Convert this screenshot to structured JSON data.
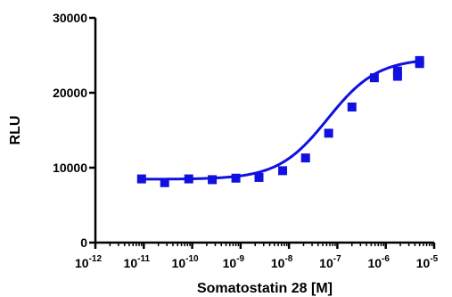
{
  "chart_data": {
    "type": "scatter",
    "xlabel": "Somatostatin 28 [M]",
    "ylabel": "RLU",
    "x_scale": "log10",
    "xlim": [
      1e-12,
      1e-05
    ],
    "ylim": [
      0,
      30000
    ],
    "x_ticks": [
      {
        "value": 1e-12,
        "base": "10",
        "exp": "-12"
      },
      {
        "value": 1e-11,
        "base": "10",
        "exp": "-11"
      },
      {
        "value": 1e-10,
        "base": "10",
        "exp": "-10"
      },
      {
        "value": 1e-09,
        "base": "10",
        "exp": "-9"
      },
      {
        "value": 1e-08,
        "base": "10",
        "exp": "-8"
      },
      {
        "value": 1e-07,
        "base": "10",
        "exp": "-7"
      },
      {
        "value": 1e-06,
        "base": "10",
        "exp": "-6"
      },
      {
        "value": 1e-05,
        "base": "10",
        "exp": "-5"
      }
    ],
    "y_ticks": [
      {
        "value": 0,
        "label": "0"
      },
      {
        "value": 10000,
        "label": "10000"
      },
      {
        "value": 20000,
        "label": "20000"
      },
      {
        "value": 30000,
        "label": "30000"
      }
    ],
    "series": [
      {
        "color": "#1010e0",
        "marker": "square",
        "x": [
          9e-12,
          2.7e-11,
          8.5e-11,
          2.6e-10,
          8e-10,
          2.4e-09,
          7.4e-09,
          2.2e-08,
          6.6e-08,
          2e-07,
          5.8e-07,
          1.75e-06,
          1.75e-06,
          5e-06,
          5e-06
        ],
        "y": [
          8500,
          8000,
          8500,
          8400,
          8600,
          8700,
          9600,
          11300,
          14600,
          18100,
          22000,
          22200,
          22900,
          23900,
          24300
        ]
      }
    ],
    "fit": {
      "type": "sigmoidal dose-response",
      "bottom": 8450,
      "top": 24600,
      "log_ec50": -7.2,
      "hill": 0.85
    },
    "grid": false,
    "legend": "none"
  }
}
